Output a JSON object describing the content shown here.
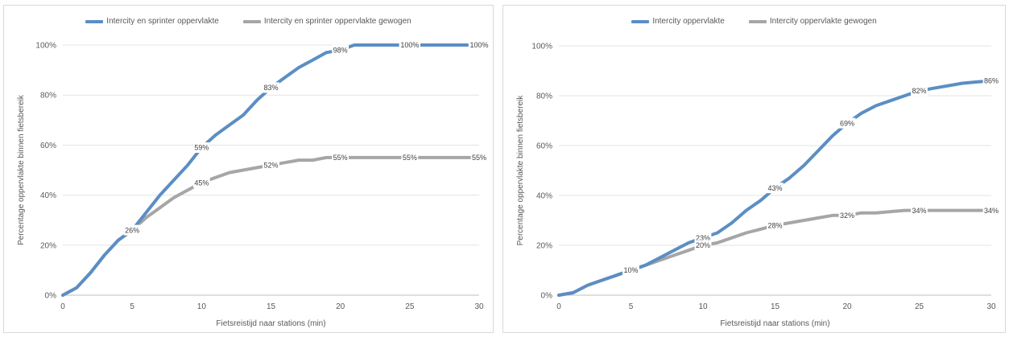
{
  "charts": [
    {
      "legend": {
        "items": [
          {
            "label": "Intercity en sprinter oppervlakte",
            "color": "#5b8ec4"
          },
          {
            "label": "Intercity en sprinter oppervlakte gewogen",
            "color": "#a6a6a6"
          }
        ]
      }
    },
    {
      "legend": {
        "items": [
          {
            "label": "Intercity oppervlakte",
            "color": "#5b8ec4"
          },
          {
            "label": "Intercity oppervlakte gewogen",
            "color": "#a6a6a6"
          }
        ]
      }
    }
  ],
  "chart_data": [
    {
      "type": "line",
      "title": "",
      "xlabel": "Fietsreistijd naar stations (min)",
      "ylabel": "Percentage oppervlakte binnen fietsbereik",
      "xlim": [
        0,
        30
      ],
      "ylim": [
        0,
        100
      ],
      "xticks": [
        "0",
        "5",
        "10",
        "15",
        "20",
        "25",
        "30"
      ],
      "yticks": [
        "0%",
        "20%",
        "40%",
        "60%",
        "80%",
        "100%"
      ],
      "grid": "horizontal",
      "legend_position": "top-center",
      "series": [
        {
          "name": "Intercity en sprinter oppervlakte",
          "color": "#5b8ec4",
          "x": [
            0,
            1,
            2,
            3,
            4,
            5,
            6,
            7,
            8,
            9,
            10,
            11,
            12,
            13,
            14,
            15,
            16,
            17,
            18,
            19,
            20,
            21,
            22,
            23,
            24,
            25,
            26,
            27,
            28,
            29,
            30
          ],
          "y": [
            0,
            3,
            9,
            16,
            22,
            26,
            33,
            40,
            46,
            52,
            59,
            64,
            68,
            72,
            78,
            83,
            87,
            91,
            94,
            97,
            98,
            100,
            100,
            100,
            100,
            100,
            100,
            100,
            100,
            100,
            100
          ],
          "labels": [
            {
              "x": 10,
              "y": 59,
              "text": "59%"
            },
            {
              "x": 15,
              "y": 83,
              "text": "83%"
            },
            {
              "x": 20,
              "y": 98,
              "text": "98%"
            },
            {
              "x": 25,
              "y": 100,
              "text": "100%"
            },
            {
              "x": 30,
              "y": 100,
              "text": "100%"
            }
          ]
        },
        {
          "name": "Intercity en sprinter oppervlakte gewogen",
          "color": "#a6a6a6",
          "x": [
            0,
            1,
            2,
            3,
            4,
            5,
            6,
            7,
            8,
            9,
            10,
            11,
            12,
            13,
            14,
            15,
            16,
            17,
            18,
            19,
            20,
            21,
            22,
            23,
            24,
            25,
            26,
            27,
            28,
            29,
            30
          ],
          "y": [
            0,
            3,
            9,
            16,
            22,
            26,
            31,
            35,
            39,
            42,
            45,
            47,
            49,
            50,
            51,
            52,
            53,
            54,
            54,
            55,
            55,
            55,
            55,
            55,
            55,
            55,
            55,
            55,
            55,
            55,
            55
          ],
          "labels": [
            {
              "x": 5,
              "y": 26,
              "text": "26%"
            },
            {
              "x": 10,
              "y": 45,
              "text": "45%"
            },
            {
              "x": 15,
              "y": 52,
              "text": "52%"
            },
            {
              "x": 20,
              "y": 55,
              "text": "55%"
            },
            {
              "x": 25,
              "y": 55,
              "text": "55%"
            },
            {
              "x": 30,
              "y": 55,
              "text": "55%"
            }
          ]
        }
      ]
    },
    {
      "type": "line",
      "title": "",
      "xlabel": "Fietsreistijd naar stations (min)",
      "ylabel": "Percentage oppervlakte binnen fietsbereik",
      "xlim": [
        0,
        30
      ],
      "ylim": [
        0,
        100
      ],
      "xticks": [
        "0",
        "5",
        "10",
        "15",
        "20",
        "25",
        "30"
      ],
      "yticks": [
        "0%",
        "20%",
        "40%",
        "60%",
        "80%",
        "100%"
      ],
      "grid": "horizontal",
      "legend_position": "top-center",
      "series": [
        {
          "name": "Intercity oppervlakte",
          "color": "#5b8ec4",
          "x": [
            0,
            1,
            2,
            3,
            4,
            5,
            6,
            7,
            8,
            9,
            10,
            11,
            12,
            13,
            14,
            15,
            16,
            17,
            18,
            19,
            20,
            21,
            22,
            23,
            24,
            25,
            26,
            27,
            28,
            29,
            30
          ],
          "y": [
            0,
            1,
            4,
            6,
            8,
            10,
            12,
            15,
            18,
            21,
            23,
            25,
            29,
            34,
            38,
            43,
            47,
            52,
            58,
            64,
            69,
            73,
            76,
            78,
            80,
            82,
            83,
            84,
            85,
            85.5,
            86
          ],
          "labels": [
            {
              "x": 5,
              "y": 10,
              "text": "10%"
            },
            {
              "x": 10,
              "y": 23,
              "text": "23%"
            },
            {
              "x": 15,
              "y": 43,
              "text": "43%"
            },
            {
              "x": 20,
              "y": 69,
              "text": "69%"
            },
            {
              "x": 25,
              "y": 82,
              "text": "82%"
            },
            {
              "x": 30,
              "y": 86,
              "text": "86%"
            }
          ]
        },
        {
          "name": "Intercity oppervlakte gewogen",
          "color": "#a6a6a6",
          "x": [
            0,
            1,
            2,
            3,
            4,
            5,
            6,
            7,
            8,
            9,
            10,
            11,
            12,
            13,
            14,
            15,
            16,
            17,
            18,
            19,
            20,
            21,
            22,
            23,
            24,
            25,
            26,
            27,
            28,
            29,
            30
          ],
          "y": [
            0,
            1,
            4,
            6,
            8,
            10,
            12,
            14,
            16,
            18,
            20,
            21,
            23,
            25,
            26.5,
            28,
            29,
            30,
            31,
            32,
            32,
            33,
            33,
            33.5,
            34,
            34,
            34,
            34,
            34,
            34,
            34
          ],
          "labels": [
            {
              "x": 10,
              "y": 20,
              "text": "20%"
            },
            {
              "x": 15,
              "y": 28,
              "text": "28%"
            },
            {
              "x": 20,
              "y": 32,
              "text": "32%"
            },
            {
              "x": 25,
              "y": 34,
              "text": "34%"
            },
            {
              "x": 30,
              "y": 34,
              "text": "34%"
            }
          ]
        }
      ]
    }
  ]
}
